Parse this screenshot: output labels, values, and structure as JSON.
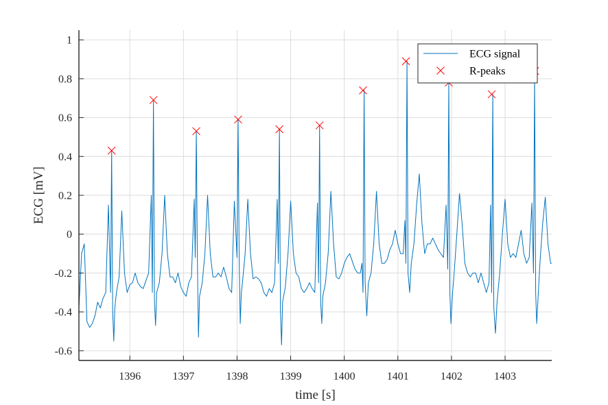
{
  "chart_data": {
    "type": "line",
    "xlabel": "time [s]",
    "ylabel": "ECG [mV]",
    "xlim": [
      1395.05,
      1403.87
    ],
    "ylim": [
      -0.65,
      1.05
    ],
    "xticks": [
      1396,
      1397,
      1398,
      1399,
      1400,
      1401,
      1402,
      1403
    ],
    "yticks": [
      -0.6,
      -0.4,
      -0.2,
      0,
      0.2,
      0.4,
      0.6,
      0.8,
      1
    ],
    "ytick_labels": [
      "-0.6",
      "-0.4",
      "-0.2",
      "0",
      "0.2",
      "0.4",
      "0.6",
      "0.8",
      "1"
    ],
    "grid": true,
    "legend_position": "top-right",
    "colors": {
      "signal": "#0072BD",
      "peaks": "#FF0000"
    },
    "series": [
      {
        "name": "ECG signal",
        "style": "line",
        "x": [
          1395.05,
          1395.1,
          1395.15,
          1395.2,
          1395.25,
          1395.3,
          1395.35,
          1395.4,
          1395.45,
          1395.5,
          1395.55,
          1395.6,
          1395.64,
          1395.66,
          1395.68,
          1395.7,
          1395.72,
          1395.75,
          1395.8,
          1395.85,
          1395.9,
          1395.95,
          1396.0,
          1396.05,
          1396.1,
          1396.15,
          1396.2,
          1396.25,
          1396.3,
          1396.35,
          1396.4,
          1396.42,
          1396.44,
          1396.46,
          1396.48,
          1396.5,
          1396.55,
          1396.6,
          1396.65,
          1396.7,
          1396.75,
          1396.8,
          1396.85,
          1396.9,
          1396.95,
          1397.0,
          1397.05,
          1397.1,
          1397.15,
          1397.2,
          1397.22,
          1397.24,
          1397.26,
          1397.28,
          1397.3,
          1397.35,
          1397.4,
          1397.45,
          1397.5,
          1397.55,
          1397.6,
          1397.65,
          1397.7,
          1397.75,
          1397.8,
          1397.85,
          1397.9,
          1397.95,
          1398.0,
          1398.02,
          1398.04,
          1398.06,
          1398.08,
          1398.1,
          1398.15,
          1398.2,
          1398.25,
          1398.3,
          1398.35,
          1398.4,
          1398.45,
          1398.5,
          1398.55,
          1398.6,
          1398.65,
          1398.7,
          1398.75,
          1398.77,
          1398.79,
          1398.81,
          1398.83,
          1398.85,
          1398.9,
          1398.95,
          1399.0,
          1399.05,
          1399.1,
          1399.15,
          1399.2,
          1399.25,
          1399.3,
          1399.35,
          1399.4,
          1399.45,
          1399.5,
          1399.52,
          1399.54,
          1399.56,
          1399.58,
          1399.6,
          1399.65,
          1399.7,
          1399.75,
          1399.8,
          1399.85,
          1399.9,
          1399.95,
          1400.0,
          1400.05,
          1400.1,
          1400.15,
          1400.2,
          1400.25,
          1400.3,
          1400.33,
          1400.35,
          1400.37,
          1400.39,
          1400.42,
          1400.45,
          1400.5,
          1400.55,
          1400.6,
          1400.65,
          1400.7,
          1400.75,
          1400.8,
          1400.85,
          1400.9,
          1400.95,
          1401.0,
          1401.05,
          1401.1,
          1401.13,
          1401.15,
          1401.17,
          1401.19,
          1401.22,
          1401.25,
          1401.3,
          1401.35,
          1401.4,
          1401.45,
          1401.5,
          1401.55,
          1401.6,
          1401.65,
          1401.7,
          1401.75,
          1401.8,
          1401.85,
          1401.9,
          1401.93,
          1401.95,
          1401.97,
          1401.99,
          1402.02,
          1402.05,
          1402.1,
          1402.15,
          1402.2,
          1402.25,
          1402.3,
          1402.35,
          1402.4,
          1402.45,
          1402.5,
          1402.55,
          1402.6,
          1402.65,
          1402.7,
          1402.73,
          1402.75,
          1402.77,
          1402.79,
          1402.82,
          1402.85,
          1402.9,
          1402.95,
          1403.0,
          1403.05,
          1403.1,
          1403.15,
          1403.2,
          1403.25,
          1403.3,
          1403.35,
          1403.4,
          1403.45,
          1403.5,
          1403.53,
          1403.55,
          1403.57,
          1403.59,
          1403.62,
          1403.65,
          1403.7,
          1403.75,
          1403.8,
          1403.85,
          1403.87
        ],
        "y": [
          -0.38,
          -0.1,
          -0.05,
          -0.45,
          -0.48,
          -0.46,
          -0.42,
          -0.35,
          -0.38,
          -0.33,
          -0.3,
          0.15,
          -0.3,
          0.43,
          -0.4,
          -0.55,
          -0.38,
          -0.3,
          -0.22,
          0.12,
          -0.2,
          -0.3,
          -0.26,
          -0.25,
          -0.2,
          -0.25,
          -0.27,
          -0.28,
          -0.24,
          -0.2,
          0.2,
          -0.3,
          0.69,
          -0.35,
          -0.47,
          -0.3,
          -0.25,
          -0.1,
          0.2,
          -0.1,
          -0.22,
          -0.22,
          -0.25,
          -0.2,
          -0.27,
          -0.3,
          -0.32,
          -0.25,
          -0.22,
          0.18,
          -0.12,
          0.53,
          -0.12,
          -0.53,
          -0.32,
          -0.25,
          -0.1,
          0.2,
          -0.1,
          -0.22,
          -0.22,
          -0.2,
          -0.22,
          -0.17,
          -0.22,
          -0.28,
          -0.3,
          0.17,
          -0.12,
          0.59,
          -0.15,
          -0.46,
          -0.3,
          -0.25,
          -0.1,
          0.18,
          -0.1,
          -0.23,
          -0.22,
          -0.23,
          -0.25,
          -0.3,
          -0.32,
          -0.28,
          -0.3,
          -0.25,
          0.18,
          -0.15,
          0.54,
          -0.4,
          -0.57,
          -0.35,
          -0.27,
          -0.1,
          0.17,
          -0.1,
          -0.2,
          -0.22,
          -0.28,
          -0.3,
          -0.28,
          -0.25,
          -0.28,
          -0.3,
          0.16,
          -0.25,
          0.56,
          -0.35,
          -0.46,
          -0.32,
          -0.25,
          -0.1,
          0.22,
          -0.05,
          -0.22,
          -0.23,
          -0.2,
          -0.15,
          -0.12,
          -0.1,
          -0.14,
          -0.18,
          -0.2,
          -0.2,
          -0.15,
          -0.3,
          0.74,
          -0.25,
          -0.42,
          -0.25,
          -0.2,
          -0.05,
          0.22,
          -0.05,
          -0.15,
          -0.15,
          -0.13,
          -0.08,
          -0.05,
          0.02,
          -0.05,
          -0.1,
          -0.1,
          0.07,
          -0.15,
          0.89,
          -0.2,
          -0.3,
          -0.15,
          -0.05,
          0.15,
          0.31,
          0.05,
          -0.1,
          -0.05,
          -0.05,
          -0.02,
          -0.05,
          -0.08,
          -0.1,
          -0.12,
          0.15,
          -0.18,
          0.78,
          -0.3,
          -0.46,
          -0.3,
          -0.2,
          0.0,
          0.21,
          0.05,
          -0.15,
          -0.2,
          -0.22,
          -0.2,
          -0.2,
          -0.25,
          -0.2,
          -0.25,
          -0.3,
          -0.25,
          0.15,
          -0.3,
          0.72,
          -0.38,
          -0.51,
          -0.35,
          -0.2,
          0.0,
          0.18,
          -0.05,
          -0.12,
          -0.1,
          -0.12,
          -0.05,
          0.02,
          -0.1,
          -0.15,
          -0.12,
          0.16,
          -0.2,
          0.8,
          -0.3,
          -0.46,
          -0.3,
          -0.15,
          0.05,
          0.19,
          -0.05,
          -0.15,
          -0.15
        ]
      },
      {
        "name": "R-peaks",
        "style": "x-marker",
        "x": [
          1395.66,
          1396.44,
          1397.24,
          1398.02,
          1398.79,
          1399.54,
          1400.35,
          1401.15,
          1401.95,
          1402.75,
          1403.56
        ],
        "y": [
          0.43,
          0.69,
          0.53,
          0.59,
          0.54,
          0.56,
          0.74,
          0.89,
          0.78,
          0.72,
          0.84
        ]
      }
    ]
  }
}
